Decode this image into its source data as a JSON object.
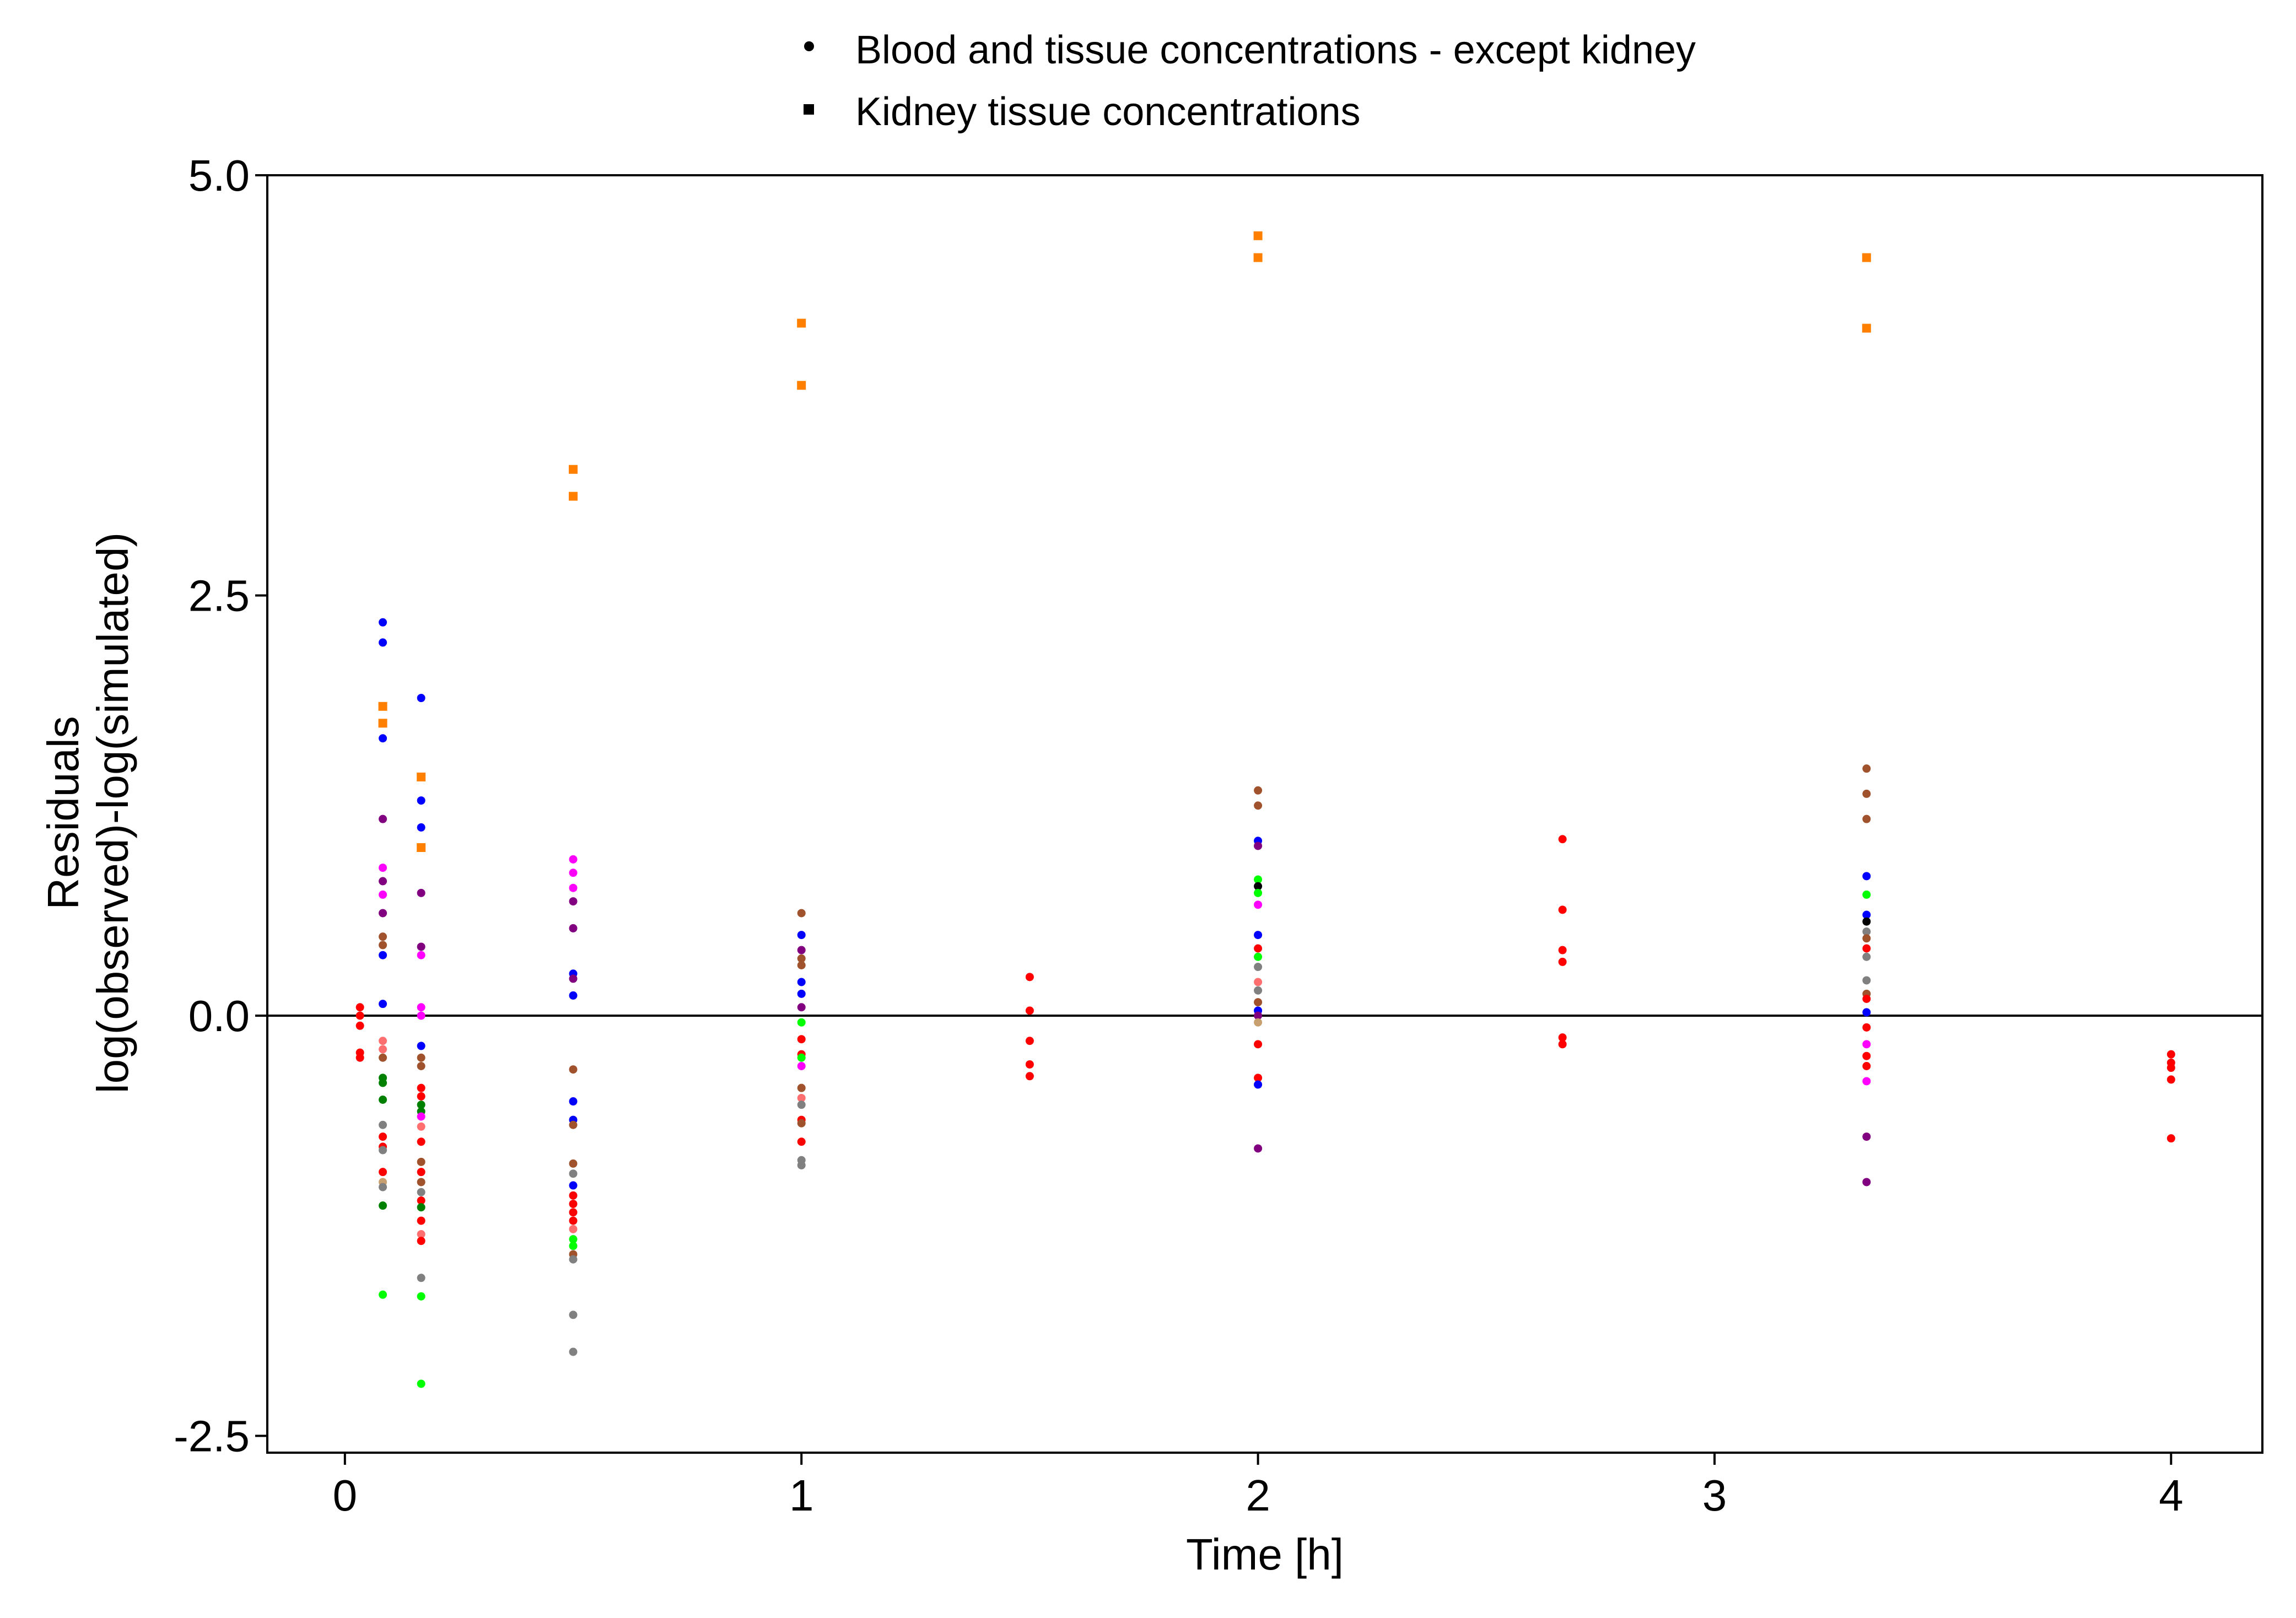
{
  "chart_data": {
    "type": "scatter",
    "title": "",
    "xlabel": "Time [h]",
    "ylabel_line1": "Residuals",
    "ylabel_line2": "log(observed)-log(simulated)",
    "xlim": [
      -0.17,
      4.2
    ],
    "ylim": [
      -2.6,
      5.0
    ],
    "x_ticks": [
      0,
      1,
      2,
      3,
      4
    ],
    "x_tick_labels": [
      "0",
      "1",
      "2",
      "3",
      "4"
    ],
    "y_ticks": [
      5.0,
      2.5,
      0.0,
      -2.5
    ],
    "y_tick_labels": [
      "5.0",
      "2.5",
      "0.0",
      "-2.5"
    ],
    "reference_line_y": 0,
    "grid": false,
    "legend_position": "top-center",
    "legend": [
      {
        "label": "Blood and tissue concentrations - except kidney",
        "marker": "circle"
      },
      {
        "label": "Kidney tissue concentrations",
        "marker": "square"
      }
    ],
    "series": [
      {
        "name": "Blood and tissue concentrations - except kidney",
        "marker": "circle",
        "points": [
          {
            "x": 0.033,
            "y": 0.05,
            "color": "#ff0000"
          },
          {
            "x": 0.033,
            "y": 0.0,
            "color": "#ff0000"
          },
          {
            "x": 0.033,
            "y": -0.06,
            "color": "#ff0000"
          },
          {
            "x": 0.033,
            "y": -0.22,
            "color": "#ff0000"
          },
          {
            "x": 0.033,
            "y": -0.25,
            "color": "#ff0000"
          },
          {
            "x": 0.083,
            "y": 2.34,
            "color": "#0000ff"
          },
          {
            "x": 0.083,
            "y": 2.22,
            "color": "#0000ff"
          },
          {
            "x": 0.083,
            "y": 1.65,
            "color": "#0000ff"
          },
          {
            "x": 0.083,
            "y": 1.17,
            "color": "#800080"
          },
          {
            "x": 0.083,
            "y": 0.88,
            "color": "#ff00ff"
          },
          {
            "x": 0.083,
            "y": 0.8,
            "color": "#800080"
          },
          {
            "x": 0.083,
            "y": 0.72,
            "color": "#ff00ff"
          },
          {
            "x": 0.083,
            "y": 0.61,
            "color": "#800080"
          },
          {
            "x": 0.083,
            "y": 0.47,
            "color": "#a0522d"
          },
          {
            "x": 0.083,
            "y": 0.42,
            "color": "#a0522d"
          },
          {
            "x": 0.083,
            "y": 0.36,
            "color": "#0000ff"
          },
          {
            "x": 0.083,
            "y": 0.07,
            "color": "#0000ff"
          },
          {
            "x": 0.083,
            "y": -0.15,
            "color": "#ff6f6f"
          },
          {
            "x": 0.083,
            "y": -0.2,
            "color": "#ff6f6f"
          },
          {
            "x": 0.083,
            "y": -0.25,
            "color": "#a0522d"
          },
          {
            "x": 0.083,
            "y": -0.37,
            "color": "#008000"
          },
          {
            "x": 0.083,
            "y": -0.4,
            "color": "#008000"
          },
          {
            "x": 0.083,
            "y": -0.5,
            "color": "#008000"
          },
          {
            "x": 0.083,
            "y": -0.65,
            "color": "#808080"
          },
          {
            "x": 0.083,
            "y": -0.72,
            "color": "#ff0000"
          },
          {
            "x": 0.083,
            "y": -0.78,
            "color": "#ff0000"
          },
          {
            "x": 0.083,
            "y": -0.8,
            "color": "#808080"
          },
          {
            "x": 0.083,
            "y": -0.93,
            "color": "#ff0000"
          },
          {
            "x": 0.083,
            "y": -0.99,
            "color": "#c8a070"
          },
          {
            "x": 0.083,
            "y": -1.02,
            "color": "#808080"
          },
          {
            "x": 0.083,
            "y": -1.13,
            "color": "#008000"
          },
          {
            "x": 0.083,
            "y": -1.66,
            "color": "#00ff00"
          },
          {
            "x": 0.167,
            "y": 1.89,
            "color": "#0000ff"
          },
          {
            "x": 0.167,
            "y": 1.28,
            "color": "#0000ff"
          },
          {
            "x": 0.167,
            "y": 1.12,
            "color": "#0000ff"
          },
          {
            "x": 0.167,
            "y": 0.73,
            "color": "#800080"
          },
          {
            "x": 0.167,
            "y": 0.41,
            "color": "#800080"
          },
          {
            "x": 0.167,
            "y": 0.36,
            "color": "#ff00ff"
          },
          {
            "x": 0.167,
            "y": 0.05,
            "color": "#ff00ff"
          },
          {
            "x": 0.167,
            "y": 0.0,
            "color": "#ff00ff"
          },
          {
            "x": 0.167,
            "y": -0.18,
            "color": "#0000ff"
          },
          {
            "x": 0.167,
            "y": -0.25,
            "color": "#a0522d"
          },
          {
            "x": 0.167,
            "y": -0.3,
            "color": "#a0522d"
          },
          {
            "x": 0.167,
            "y": -0.43,
            "color": "#ff0000"
          },
          {
            "x": 0.167,
            "y": -0.48,
            "color": "#ff0000"
          },
          {
            "x": 0.167,
            "y": -0.53,
            "color": "#008000"
          },
          {
            "x": 0.167,
            "y": -0.57,
            "color": "#008000"
          },
          {
            "x": 0.167,
            "y": -0.6,
            "color": "#ff00ff"
          },
          {
            "x": 0.167,
            "y": -0.66,
            "color": "#ff6f6f"
          },
          {
            "x": 0.167,
            "y": -0.75,
            "color": "#ff0000"
          },
          {
            "x": 0.167,
            "y": -0.87,
            "color": "#a0522d"
          },
          {
            "x": 0.167,
            "y": -0.93,
            "color": "#ff0000"
          },
          {
            "x": 0.167,
            "y": -0.99,
            "color": "#a0522d"
          },
          {
            "x": 0.167,
            "y": -1.05,
            "color": "#808080"
          },
          {
            "x": 0.167,
            "y": -1.1,
            "color": "#ff0000"
          },
          {
            "x": 0.167,
            "y": -1.14,
            "color": "#008000"
          },
          {
            "x": 0.167,
            "y": -1.22,
            "color": "#ff0000"
          },
          {
            "x": 0.167,
            "y": -1.3,
            "color": "#ff6f6f"
          },
          {
            "x": 0.167,
            "y": -1.34,
            "color": "#ff0000"
          },
          {
            "x": 0.167,
            "y": -1.56,
            "color": "#808080"
          },
          {
            "x": 0.167,
            "y": -1.67,
            "color": "#00ff00"
          },
          {
            "x": 0.167,
            "y": -2.19,
            "color": "#00ff00"
          },
          {
            "x": 0.5,
            "y": 0.93,
            "color": "#ff00ff"
          },
          {
            "x": 0.5,
            "y": 0.85,
            "color": "#ff00ff"
          },
          {
            "x": 0.5,
            "y": 0.76,
            "color": "#ff00ff"
          },
          {
            "x": 0.5,
            "y": 0.68,
            "color": "#800080"
          },
          {
            "x": 0.5,
            "y": 0.52,
            "color": "#800080"
          },
          {
            "x": 0.5,
            "y": 0.25,
            "color": "#0000ff"
          },
          {
            "x": 0.5,
            "y": 0.22,
            "color": "#800080"
          },
          {
            "x": 0.5,
            "y": 0.12,
            "color": "#0000ff"
          },
          {
            "x": 0.5,
            "y": -0.32,
            "color": "#a0522d"
          },
          {
            "x": 0.5,
            "y": -0.51,
            "color": "#0000ff"
          },
          {
            "x": 0.5,
            "y": -0.62,
            "color": "#0000ff"
          },
          {
            "x": 0.5,
            "y": -0.65,
            "color": "#a0522d"
          },
          {
            "x": 0.5,
            "y": -0.88,
            "color": "#a0522d"
          },
          {
            "x": 0.5,
            "y": -0.94,
            "color": "#808080"
          },
          {
            "x": 0.5,
            "y": -1.01,
            "color": "#0000ff"
          },
          {
            "x": 0.5,
            "y": -1.07,
            "color": "#ff0000"
          },
          {
            "x": 0.5,
            "y": -1.12,
            "color": "#ff0000"
          },
          {
            "x": 0.5,
            "y": -1.17,
            "color": "#ff0000"
          },
          {
            "x": 0.5,
            "y": -1.22,
            "color": "#ff0000"
          },
          {
            "x": 0.5,
            "y": -1.27,
            "color": "#ff6f6f"
          },
          {
            "x": 0.5,
            "y": -1.33,
            "color": "#00ff00"
          },
          {
            "x": 0.5,
            "y": -1.37,
            "color": "#00ff00"
          },
          {
            "x": 0.5,
            "y": -1.42,
            "color": "#a0522d"
          },
          {
            "x": 0.5,
            "y": -1.45,
            "color": "#808080"
          },
          {
            "x": 0.5,
            "y": -1.78,
            "color": "#808080"
          },
          {
            "x": 0.5,
            "y": -2.0,
            "color": "#808080"
          },
          {
            "x": 1.0,
            "y": 0.61,
            "color": "#a0522d"
          },
          {
            "x": 1.0,
            "y": 0.48,
            "color": "#0000ff"
          },
          {
            "x": 1.0,
            "y": 0.39,
            "color": "#800080"
          },
          {
            "x": 1.0,
            "y": 0.34,
            "color": "#a0522d"
          },
          {
            "x": 1.0,
            "y": 0.3,
            "color": "#a0522d"
          },
          {
            "x": 1.0,
            "y": 0.2,
            "color": "#0000ff"
          },
          {
            "x": 1.0,
            "y": 0.13,
            "color": "#0000ff"
          },
          {
            "x": 1.0,
            "y": 0.05,
            "color": "#800080"
          },
          {
            "x": 1.0,
            "y": -0.04,
            "color": "#00ff00"
          },
          {
            "x": 1.0,
            "y": -0.14,
            "color": "#ff0000"
          },
          {
            "x": 1.0,
            "y": -0.23,
            "color": "#ff0000"
          },
          {
            "x": 1.0,
            "y": -0.25,
            "color": "#00ff00"
          },
          {
            "x": 1.0,
            "y": -0.3,
            "color": "#ff00ff"
          },
          {
            "x": 1.0,
            "y": -0.43,
            "color": "#a0522d"
          },
          {
            "x": 1.0,
            "y": -0.49,
            "color": "#ff6f6f"
          },
          {
            "x": 1.0,
            "y": -0.53,
            "color": "#808080"
          },
          {
            "x": 1.0,
            "y": -0.62,
            "color": "#ff0000"
          },
          {
            "x": 1.0,
            "y": -0.64,
            "color": "#a0522d"
          },
          {
            "x": 1.0,
            "y": -0.75,
            "color": "#ff0000"
          },
          {
            "x": 1.0,
            "y": -0.86,
            "color": "#808080"
          },
          {
            "x": 1.0,
            "y": -0.89,
            "color": "#808080"
          },
          {
            "x": 1.5,
            "y": 0.23,
            "color": "#ff0000"
          },
          {
            "x": 1.5,
            "y": 0.03,
            "color": "#ff0000"
          },
          {
            "x": 1.5,
            "y": -0.15,
            "color": "#ff0000"
          },
          {
            "x": 1.5,
            "y": -0.29,
            "color": "#ff0000"
          },
          {
            "x": 1.5,
            "y": -0.36,
            "color": "#ff0000"
          },
          {
            "x": 2.0,
            "y": 1.34,
            "color": "#a0522d"
          },
          {
            "x": 2.0,
            "y": 1.25,
            "color": "#a0522d"
          },
          {
            "x": 2.0,
            "y": 1.04,
            "color": "#0000ff"
          },
          {
            "x": 2.0,
            "y": 1.01,
            "color": "#800080"
          },
          {
            "x": 2.0,
            "y": 0.81,
            "color": "#00ff00"
          },
          {
            "x": 2.0,
            "y": 0.77,
            "color": "#000000"
          },
          {
            "x": 2.0,
            "y": 0.73,
            "color": "#00ff00"
          },
          {
            "x": 2.0,
            "y": 0.66,
            "color": "#ff00ff"
          },
          {
            "x": 2.0,
            "y": 0.48,
            "color": "#0000ff"
          },
          {
            "x": 2.0,
            "y": 0.4,
            "color": "#ff0000"
          },
          {
            "x": 2.0,
            "y": 0.35,
            "color": "#00ff00"
          },
          {
            "x": 2.0,
            "y": 0.29,
            "color": "#808080"
          },
          {
            "x": 2.0,
            "y": 0.2,
            "color": "#ff6f6f"
          },
          {
            "x": 2.0,
            "y": 0.15,
            "color": "#808080"
          },
          {
            "x": 2.0,
            "y": 0.08,
            "color": "#a0522d"
          },
          {
            "x": 2.0,
            "y": 0.03,
            "color": "#0000ff"
          },
          {
            "x": 2.0,
            "y": 0.0,
            "color": "#800080"
          },
          {
            "x": 2.0,
            "y": -0.04,
            "color": "#c8a070"
          },
          {
            "x": 2.0,
            "y": -0.17,
            "color": "#ff0000"
          },
          {
            "x": 2.0,
            "y": -0.37,
            "color": "#ff0000"
          },
          {
            "x": 2.0,
            "y": -0.41,
            "color": "#0000ff"
          },
          {
            "x": 2.0,
            "y": -0.79,
            "color": "#800080"
          },
          {
            "x": 2.667,
            "y": 1.05,
            "color": "#ff0000"
          },
          {
            "x": 2.667,
            "y": 0.63,
            "color": "#ff0000"
          },
          {
            "x": 2.667,
            "y": 0.39,
            "color": "#ff0000"
          },
          {
            "x": 2.667,
            "y": 0.32,
            "color": "#ff0000"
          },
          {
            "x": 2.667,
            "y": -0.13,
            "color": "#ff0000"
          },
          {
            "x": 2.667,
            "y": -0.17,
            "color": "#ff0000"
          },
          {
            "x": 3.333,
            "y": 1.47,
            "color": "#a0522d"
          },
          {
            "x": 3.333,
            "y": 1.32,
            "color": "#a0522d"
          },
          {
            "x": 3.333,
            "y": 1.17,
            "color": "#a0522d"
          },
          {
            "x": 3.333,
            "y": 0.83,
            "color": "#0000ff"
          },
          {
            "x": 3.333,
            "y": 0.72,
            "color": "#00ff00"
          },
          {
            "x": 3.333,
            "y": 0.6,
            "color": "#0000ff"
          },
          {
            "x": 3.333,
            "y": 0.56,
            "color": "#000000"
          },
          {
            "x": 3.333,
            "y": 0.5,
            "color": "#808080"
          },
          {
            "x": 3.333,
            "y": 0.46,
            "color": "#a0522d"
          },
          {
            "x": 3.333,
            "y": 0.4,
            "color": "#ff0000"
          },
          {
            "x": 3.333,
            "y": 0.35,
            "color": "#808080"
          },
          {
            "x": 3.333,
            "y": 0.21,
            "color": "#808080"
          },
          {
            "x": 3.333,
            "y": 0.13,
            "color": "#a0522d"
          },
          {
            "x": 3.333,
            "y": 0.1,
            "color": "#ff0000"
          },
          {
            "x": 3.333,
            "y": 0.02,
            "color": "#0000ff"
          },
          {
            "x": 3.333,
            "y": -0.07,
            "color": "#ff0000"
          },
          {
            "x": 3.333,
            "y": -0.17,
            "color": "#ff00ff"
          },
          {
            "x": 3.333,
            "y": -0.24,
            "color": "#ff0000"
          },
          {
            "x": 3.333,
            "y": -0.3,
            "color": "#ff0000"
          },
          {
            "x": 3.333,
            "y": -0.39,
            "color": "#ff00ff"
          },
          {
            "x": 3.333,
            "y": -0.72,
            "color": "#800080"
          },
          {
            "x": 3.333,
            "y": -0.99,
            "color": "#800080"
          },
          {
            "x": 4.0,
            "y": -0.23,
            "color": "#ff0000"
          },
          {
            "x": 4.0,
            "y": -0.28,
            "color": "#ff0000"
          },
          {
            "x": 4.0,
            "y": -0.31,
            "color": "#ff0000"
          },
          {
            "x": 4.0,
            "y": -0.38,
            "color": "#ff0000"
          },
          {
            "x": 4.0,
            "y": -0.73,
            "color": "#ff0000"
          }
        ]
      },
      {
        "name": "Kidney tissue concentrations",
        "marker": "square",
        "points": [
          {
            "x": 0.083,
            "y": 1.84,
            "color": "#ff8000"
          },
          {
            "x": 0.083,
            "y": 1.74,
            "color": "#ff8000"
          },
          {
            "x": 0.167,
            "y": 1.42,
            "color": "#ff8000"
          },
          {
            "x": 0.167,
            "y": 1.0,
            "color": "#ff8000"
          },
          {
            "x": 0.5,
            "y": 3.25,
            "color": "#ff8000"
          },
          {
            "x": 0.5,
            "y": 3.09,
            "color": "#ff8000"
          },
          {
            "x": 1.0,
            "y": 4.12,
            "color": "#ff8000"
          },
          {
            "x": 1.0,
            "y": 3.75,
            "color": "#ff8000"
          },
          {
            "x": 2.0,
            "y": 4.64,
            "color": "#ff8000"
          },
          {
            "x": 2.0,
            "y": 4.51,
            "color": "#ff8000"
          },
          {
            "x": 3.333,
            "y": 4.51,
            "color": "#ff8000"
          },
          {
            "x": 3.333,
            "y": 4.09,
            "color": "#ff8000"
          }
        ]
      }
    ]
  }
}
